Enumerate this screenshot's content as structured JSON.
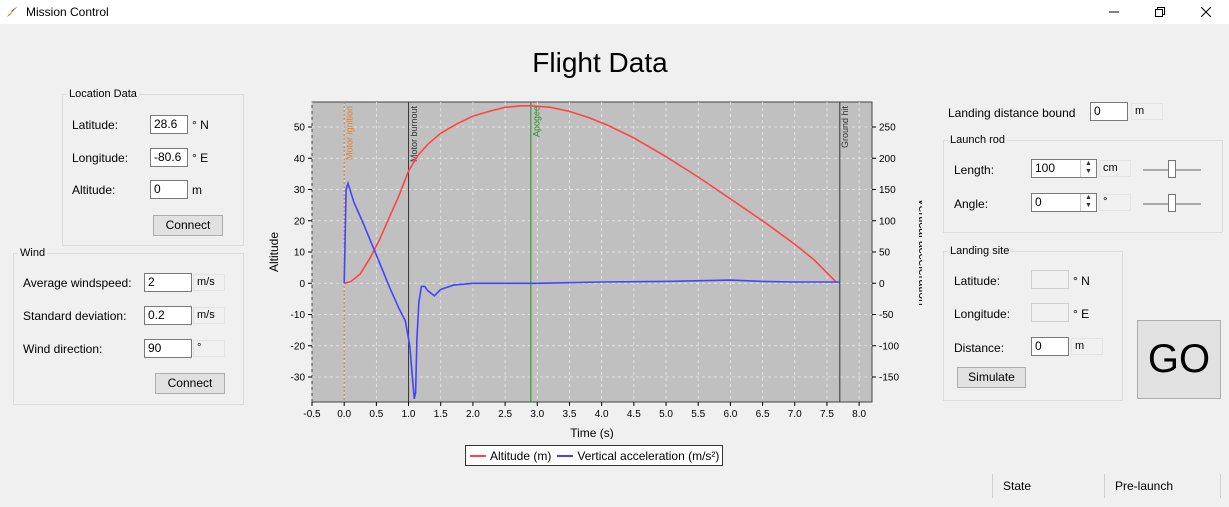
{
  "window": {
    "title": "Mission Control",
    "icon": "rocket-icon"
  },
  "heading": "Flight Data",
  "location": {
    "legend": "Location Data",
    "latitude_label": "Latitude:",
    "latitude": "28.6",
    "latitude_unit": "° N",
    "longitude_label": "Longitude:",
    "longitude": "-80.6",
    "longitude_unit": "° E",
    "altitude_label": "Altitude:",
    "altitude": "0",
    "altitude_unit": "m",
    "connect": "Connect"
  },
  "wind": {
    "legend": "Wind",
    "avg_label": "Average windspeed:",
    "avg": "2",
    "avg_unit": "m/s",
    "std_label": "Standard deviation:",
    "std": "0.2",
    "std_unit": "m/s",
    "dir_label": "Wind direction:",
    "dir": "90",
    "dir_unit": "°",
    "connect": "Connect"
  },
  "landing_bound": {
    "label": "Landing distance bound",
    "value": "0",
    "unit": "m"
  },
  "launch_rod": {
    "legend": "Launch rod",
    "length_label": "Length:",
    "length": "100",
    "length_unit": "cm",
    "length_slider": 0.5,
    "angle_label": "Angle:",
    "angle": "0",
    "angle_unit": "°",
    "angle_slider": 0.5
  },
  "landing_site": {
    "legend": "Landing site",
    "latitude_label": "Latitude:",
    "latitude": "",
    "latitude_unit": "° N",
    "longitude_label": "Longitude:",
    "longitude": "",
    "longitude_unit": "° E",
    "distance_label": "Distance:",
    "distance": "0",
    "distance_unit": "m",
    "simulate": "Simulate"
  },
  "go": "GO",
  "status": {
    "label": "State",
    "value": "Pre-launch"
  },
  "colors": {
    "altitude": "#ff4444",
    "acceleration": "#4444ff",
    "plot_bg": "#c0c0c0",
    "ignition": "#e08030",
    "apogee": "#2a8a2a",
    "event": "#333333"
  },
  "chart_data": {
    "type": "line",
    "xlabel": "Time (s)",
    "ylabel": "Altitude",
    "y2label": "Vertical acceleration",
    "xlim": [
      -0.5,
      8.2
    ],
    "ylim": [
      -38,
      58
    ],
    "y2lim": [
      -190,
      290
    ],
    "xticks": [
      "-0.5",
      "0.0",
      "0.5",
      "1.0",
      "1.5",
      "2.0",
      "2.5",
      "3.0",
      "3.5",
      "4.0",
      "4.5",
      "5.0",
      "5.5",
      "6.0",
      "6.5",
      "7.0",
      "7.5",
      "8.0"
    ],
    "yticks": [
      "-30",
      "-20",
      "-10",
      "0",
      "10",
      "20",
      "30",
      "40",
      "50"
    ],
    "y2ticks": [
      "-150",
      "-100",
      "-50",
      "0",
      "50",
      "100",
      "150",
      "200",
      "250"
    ],
    "grid": true,
    "legend_position": "bottom",
    "events": [
      {
        "label": "Motor ignition",
        "x": 0.0
      },
      {
        "label": "Motor burnout",
        "x": 1.0
      },
      {
        "label": "Apogee",
        "x": 2.9
      },
      {
        "label": "Ground hit",
        "x": 7.7
      }
    ],
    "series": [
      {
        "name": "Altitude (m)",
        "axis": "left",
        "x": [
          0.0,
          0.1,
          0.25,
          0.4,
          0.55,
          0.7,
          0.85,
          1.0,
          1.15,
          1.3,
          1.5,
          1.75,
          2.0,
          2.25,
          2.5,
          2.75,
          2.9,
          3.2,
          3.5,
          3.8,
          4.1,
          4.5,
          5.0,
          5.5,
          6.0,
          6.5,
          7.0,
          7.3,
          7.65
        ],
        "y": [
          0,
          0.5,
          3,
          8,
          14,
          21,
          28,
          36,
          41,
          44.5,
          48,
          51,
          53.5,
          55,
          56.3,
          56.8,
          56.8,
          56.3,
          55,
          53,
          50.5,
          46.5,
          40.5,
          34,
          27,
          20,
          12.5,
          7.5,
          0.2
        ]
      },
      {
        "name": "Vertical acceleration (m/s²)",
        "axis": "right",
        "x": [
          0.0,
          0.03,
          0.06,
          0.15,
          0.3,
          0.5,
          0.7,
          0.85,
          0.95,
          1.02,
          1.06,
          1.09,
          1.11,
          1.13,
          1.16,
          1.2,
          1.25,
          1.3,
          1.4,
          1.5,
          1.7,
          2.0,
          2.5,
          3.0,
          4.0,
          5.0,
          6.0,
          6.5,
          7.0,
          7.7
        ],
        "y": [
          0,
          150,
          160,
          130,
          95,
          45,
          -5,
          -40,
          -60,
          -100,
          -150,
          -185,
          -175,
          -90,
          -30,
          -5,
          -5,
          -12,
          -20,
          -10,
          -3,
          0,
          0,
          0,
          2,
          3,
          5,
          3,
          2,
          2
        ]
      }
    ]
  }
}
